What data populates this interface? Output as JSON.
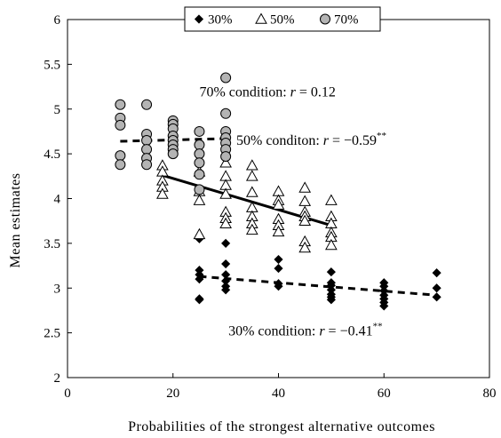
{
  "chart_data": {
    "type": "scatter",
    "xlabel": "Probabilities of the strongest alternative outcomes",
    "ylabel": "Mean estimates",
    "xlim": [
      0,
      80
    ],
    "ylim": [
      2,
      6
    ],
    "x_ticks": [
      0,
      20,
      40,
      60,
      80
    ],
    "y_ticks": [
      2,
      2.5,
      3,
      3.5,
      4,
      4.5,
      5,
      5.5,
      6
    ],
    "x_tick_labels": [
      "0",
      "20",
      "40",
      "60",
      "80"
    ],
    "y_tick_labels": [
      "2",
      "2.5",
      "3",
      "3.5",
      "4",
      "4.5",
      "5",
      "5.5",
      "6"
    ],
    "grid": false,
    "legend": {
      "placement": "top-center",
      "entries": [
        {
          "label": "30%",
          "marker": "diamond",
          "color": "#000000"
        },
        {
          "label": "50%",
          "marker": "triangle",
          "color": "#ffffff"
        },
        {
          "label": "70%",
          "marker": "circle",
          "color": "#b4b4b4"
        }
      ]
    },
    "series": [
      {
        "name": "30%",
        "marker": "diamond",
        "points": [
          [
            25,
            3.55
          ],
          [
            25,
            3.2
          ],
          [
            25,
            3.15
          ],
          [
            25,
            3.1
          ],
          [
            25,
            2.88
          ],
          [
            25,
            2.87
          ],
          [
            30,
            3.5
          ],
          [
            30,
            3.27
          ],
          [
            30,
            3.15
          ],
          [
            30,
            3.08
          ],
          [
            30,
            3.02
          ],
          [
            30,
            2.98
          ],
          [
            40,
            3.32
          ],
          [
            40,
            3.22
          ],
          [
            40,
            3.05
          ],
          [
            40,
            3.02
          ],
          [
            50,
            3.18
          ],
          [
            50,
            3.06
          ],
          [
            50,
            3.03
          ],
          [
            50,
            2.98
          ],
          [
            50,
            2.93
          ],
          [
            50,
            2.9
          ],
          [
            50,
            2.87
          ],
          [
            60,
            3.06
          ],
          [
            60,
            3.02
          ],
          [
            60,
            2.97
          ],
          [
            60,
            2.92
          ],
          [
            60,
            2.88
          ],
          [
            60,
            2.84
          ],
          [
            60,
            2.8
          ],
          [
            70,
            3.17
          ],
          [
            70,
            3.0
          ],
          [
            70,
            2.9
          ]
        ],
        "trend": {
          "x": [
            25,
            70
          ],
          "y": [
            3.13,
            2.92
          ],
          "style": "dashed"
        }
      },
      {
        "name": "50%",
        "marker": "triangle",
        "points": [
          [
            18,
            4.37
          ],
          [
            18,
            4.3
          ],
          [
            18,
            4.2
          ],
          [
            18,
            4.13
          ],
          [
            18,
            4.05
          ],
          [
            25,
            4.3
          ],
          [
            25,
            4.08
          ],
          [
            25,
            3.98
          ],
          [
            25,
            3.6
          ],
          [
            30,
            4.4
          ],
          [
            30,
            4.25
          ],
          [
            30,
            4.15
          ],
          [
            30,
            4.05
          ],
          [
            30,
            3.85
          ],
          [
            30,
            3.78
          ],
          [
            30,
            3.72
          ],
          [
            35,
            4.37
          ],
          [
            35,
            4.25
          ],
          [
            35,
            4.07
          ],
          [
            35,
            3.9
          ],
          [
            35,
            3.8
          ],
          [
            35,
            3.72
          ],
          [
            35,
            3.65
          ],
          [
            40,
            4.08
          ],
          [
            40,
            3.98
          ],
          [
            40,
            3.93
          ],
          [
            40,
            3.77
          ],
          [
            40,
            3.7
          ],
          [
            40,
            3.63
          ],
          [
            45,
            4.12
          ],
          [
            45,
            3.97
          ],
          [
            45,
            3.85
          ],
          [
            45,
            3.8
          ],
          [
            45,
            3.75
          ],
          [
            45,
            3.52
          ],
          [
            45,
            3.45
          ],
          [
            50,
            3.98
          ],
          [
            50,
            3.8
          ],
          [
            50,
            3.72
          ],
          [
            50,
            3.62
          ],
          [
            50,
            3.57
          ],
          [
            50,
            3.48
          ]
        ],
        "trend": {
          "x": [
            18,
            50
          ],
          "y": [
            4.26,
            3.7
          ],
          "style": "solid"
        }
      },
      {
        "name": "70%",
        "marker": "circle",
        "points": [
          [
            10,
            5.05
          ],
          [
            10,
            4.9
          ],
          [
            10,
            4.82
          ],
          [
            10,
            4.48
          ],
          [
            10,
            4.38
          ],
          [
            15,
            5.05
          ],
          [
            15,
            4.72
          ],
          [
            15,
            4.65
          ],
          [
            15,
            4.55
          ],
          [
            15,
            4.45
          ],
          [
            15,
            4.38
          ],
          [
            20,
            4.87
          ],
          [
            20,
            4.83
          ],
          [
            20,
            4.78
          ],
          [
            20,
            4.7
          ],
          [
            20,
            4.65
          ],
          [
            20,
            4.6
          ],
          [
            20,
            4.55
          ],
          [
            20,
            4.5
          ],
          [
            25,
            4.75
          ],
          [
            25,
            4.6
          ],
          [
            25,
            4.5
          ],
          [
            25,
            4.4
          ],
          [
            25,
            4.27
          ],
          [
            25,
            4.1
          ],
          [
            30,
            5.35
          ],
          [
            30,
            4.95
          ],
          [
            30,
            4.75
          ],
          [
            30,
            4.68
          ],
          [
            30,
            4.62
          ],
          [
            30,
            4.55
          ],
          [
            30,
            4.47
          ]
        ],
        "trend": {
          "x": [
            10,
            30
          ],
          "y": [
            4.64,
            4.67
          ],
          "style": "dashed"
        }
      }
    ],
    "annotations": [
      {
        "label": "70% condition:",
        "r_text": "= 0.12",
        "sup": "",
        "x": 25,
        "y": 5.14
      },
      {
        "label": "50% conditon:",
        "r_text": "= −0.59",
        "sup": "**",
        "x": 32,
        "y": 4.6
      },
      {
        "label": "30% condition:",
        "r_text": "= −0.41",
        "sup": "**",
        "x": 30.5,
        "y": 2.47
      }
    ]
  }
}
